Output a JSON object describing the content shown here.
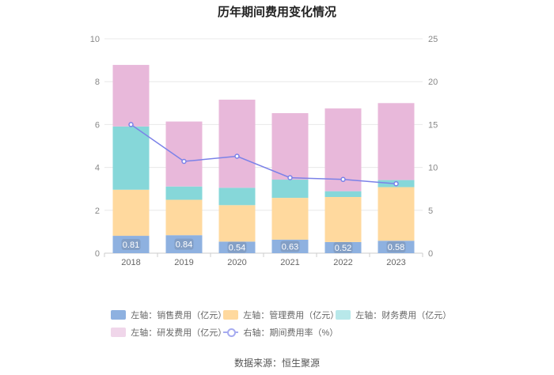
{
  "chart_data": {
    "type": "bar",
    "title": "历年期间费用变化情况",
    "categories": [
      "2018",
      "2019",
      "2020",
      "2021",
      "2022",
      "2023"
    ],
    "left_axis": {
      "ticks": [
        "0",
        "2",
        "4",
        "6",
        "8",
        "10"
      ],
      "ylim": [
        0,
        10
      ]
    },
    "right_axis": {
      "ticks": [
        "0",
        "5",
        "10",
        "15",
        "20",
        "25"
      ],
      "ylim": [
        0,
        25
      ]
    },
    "series": [
      {
        "name": "左轴：销售费用（亿元）",
        "kind": "stacked-bar",
        "axis": "left",
        "color": "#8eb1e0",
        "values": [
          0.81,
          0.84,
          0.54,
          0.63,
          0.52,
          0.58
        ],
        "labels": [
          "0.81",
          "0.84",
          "0.54",
          "0.63",
          "0.52",
          "0.58"
        ]
      },
      {
        "name": "左轴：管理费用（亿元）",
        "kind": "stacked-bar",
        "axis": "left",
        "color": "#ffd99e",
        "values": [
          2.15,
          1.65,
          1.7,
          1.95,
          2.1,
          2.5
        ]
      },
      {
        "name": "左轴：财务费用（亿元）",
        "kind": "stacked-bar",
        "axis": "left",
        "color": "#86d7d9",
        "values": [
          2.95,
          0.62,
          0.81,
          0.85,
          0.27,
          0.33
        ]
      },
      {
        "name": "左轴：研发费用（亿元）",
        "kind": "stacked-bar",
        "axis": "left",
        "color": "#e8b8da",
        "values": [
          2.87,
          3.03,
          4.11,
          3.1,
          3.86,
          3.59
        ]
      },
      {
        "name": "右轴：期间费用率（%）",
        "kind": "line",
        "axis": "right",
        "color": "#7b82e8",
        "values": [
          15.0,
          10.7,
          11.3,
          8.8,
          8.6,
          8.1
        ]
      }
    ],
    "source": "数据来源：恒生聚源"
  }
}
